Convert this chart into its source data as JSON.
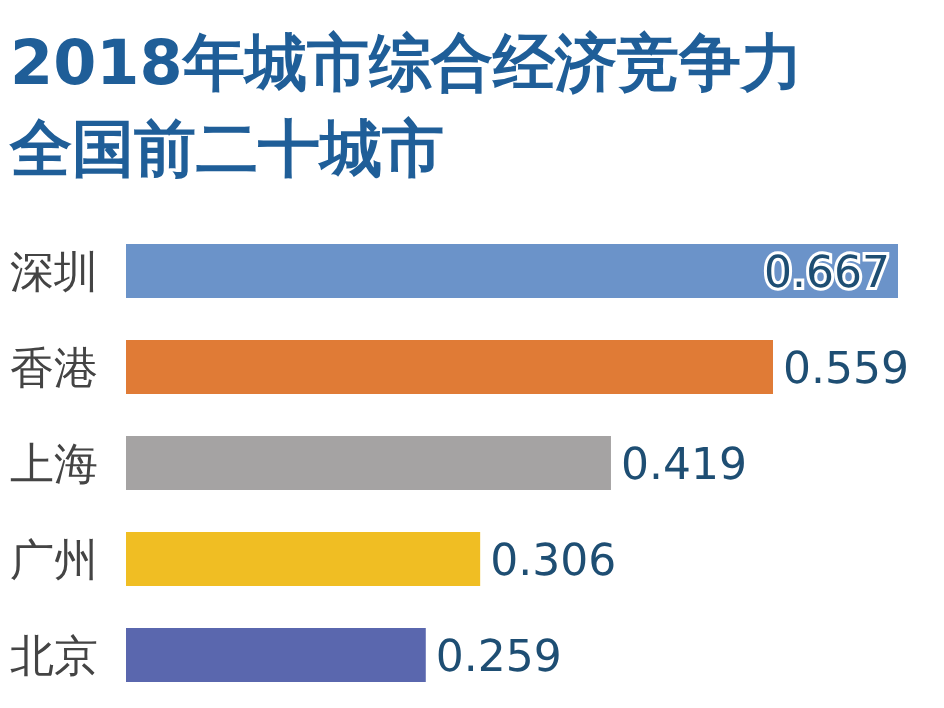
{
  "chart_data": {
    "type": "bar",
    "orientation": "horizontal",
    "title": "2018年城市综合经济竞争力",
    "subtitle": "全国前二十城市",
    "categories": [
      "深圳",
      "香港",
      "上海",
      "广州",
      "北京"
    ],
    "values": [
      0.667,
      0.559,
      0.419,
      0.306,
      0.259
    ],
    "colors": [
      "#6b93c9",
      "#e07b36",
      "#a5a3a3",
      "#f0be23",
      "#5a67ae"
    ],
    "data_labels": true
  }
}
